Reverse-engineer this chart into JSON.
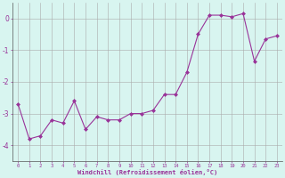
{
  "x": [
    0,
    1,
    2,
    3,
    4,
    5,
    6,
    7,
    8,
    9,
    10,
    11,
    12,
    13,
    14,
    15,
    16,
    17,
    18,
    19,
    20,
    21,
    22,
    23
  ],
  "y": [
    -2.7,
    -3.8,
    -3.7,
    -3.2,
    -3.3,
    -2.6,
    -3.5,
    -3.1,
    -3.2,
    -3.2,
    -3.0,
    -3.0,
    -2.9,
    -2.4,
    -2.4,
    -1.7,
    -0.5,
    0.1,
    0.1,
    0.05,
    0.15,
    -1.35,
    -0.65,
    -0.55
  ],
  "line_color": "#993399",
  "marker": "D",
  "marker_size": 2,
  "bg_color": "#d8f5f0",
  "grid_color": "#aaaaaa",
  "tick_color": "#993399",
  "xlabel": "Windchill (Refroidissement éolien,°C)",
  "ylim": [
    -4.5,
    0.5
  ],
  "yticks": [
    0,
    -1,
    -2,
    -3,
    -4
  ],
  "xticks": [
    0,
    1,
    2,
    3,
    4,
    5,
    6,
    7,
    8,
    9,
    10,
    11,
    12,
    13,
    14,
    15,
    16,
    17,
    18,
    19,
    20,
    21,
    22,
    23
  ],
  "xlim": [
    -0.5,
    23.5
  ]
}
